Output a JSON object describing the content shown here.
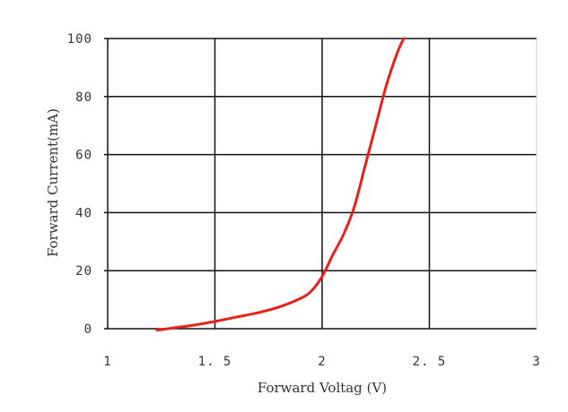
{
  "chart_data": {
    "type": "line",
    "title": "",
    "xlabel": "Forward Voltag (V)",
    "ylabel": "Forward Current(mA)",
    "xlim": [
      1,
      3
    ],
    "ylim": [
      0,
      100
    ],
    "x_ticks": [
      1,
      1.5,
      2,
      2.5,
      3
    ],
    "x_tick_labels": [
      "1",
      "1. 5",
      "2",
      "2. 5",
      "3"
    ],
    "y_ticks": [
      0,
      20,
      40,
      60,
      80,
      100
    ],
    "y_tick_labels": [
      "0",
      "20",
      "40",
      "60",
      "80",
      "100"
    ],
    "grid": true,
    "legend": "none",
    "series": [
      {
        "color": "#e8211a",
        "x": [
          1.23,
          1.3,
          1.4,
          1.5,
          1.6,
          1.7,
          1.8,
          1.9,
          1.95,
          2.0,
          2.05,
          2.1,
          2.15,
          2.2,
          2.25,
          2.3,
          2.35,
          2.38
        ],
        "y": [
          -0.5,
          0.2,
          1.2,
          2.5,
          4.0,
          5.5,
          7.5,
          10.5,
          13.0,
          18.0,
          25.5,
          32.5,
          42.0,
          56.0,
          70.0,
          84.0,
          95.0,
          100
        ]
      }
    ]
  }
}
